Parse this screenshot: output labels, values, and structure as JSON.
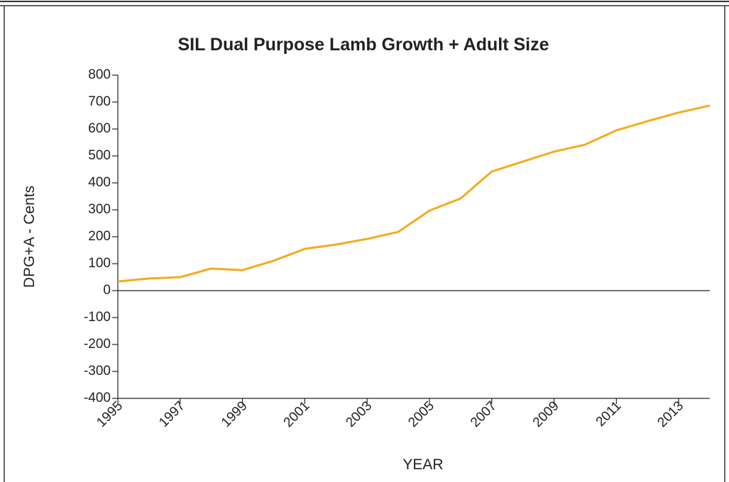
{
  "chart_data": {
    "type": "line",
    "title": "SIL Dual Purpose Lamb Growth + Adult Size",
    "x_label": "YEAR",
    "y_label": "DPG+A - Cents",
    "x": [
      1995,
      1996,
      1997,
      1998,
      1999,
      2000,
      2001,
      2002,
      2003,
      2004,
      2005,
      2006,
      2007,
      2008,
      2009,
      2010,
      2011,
      2012,
      2013,
      2014
    ],
    "series": [
      {
        "name": "DPG+A",
        "color": "#f4ab1f",
        "values": [
          34,
          45,
          50,
          82,
          76,
          111,
          155,
          171,
          192,
          218,
          297,
          342,
          442,
          479,
          516,
          542,
          595,
          629,
          661,
          687
        ]
      }
    ],
    "xlim": [
      1995,
      2014
    ],
    "xticks": [
      1995,
      1997,
      1999,
      2001,
      2003,
      2005,
      2007,
      2009,
      2011,
      2013
    ],
    "ylim": [
      -400,
      800
    ],
    "yticks": [
      -400,
      -300,
      -200,
      -100,
      0,
      100,
      200,
      300,
      400,
      500,
      600,
      700,
      800
    ],
    "grid": false
  }
}
